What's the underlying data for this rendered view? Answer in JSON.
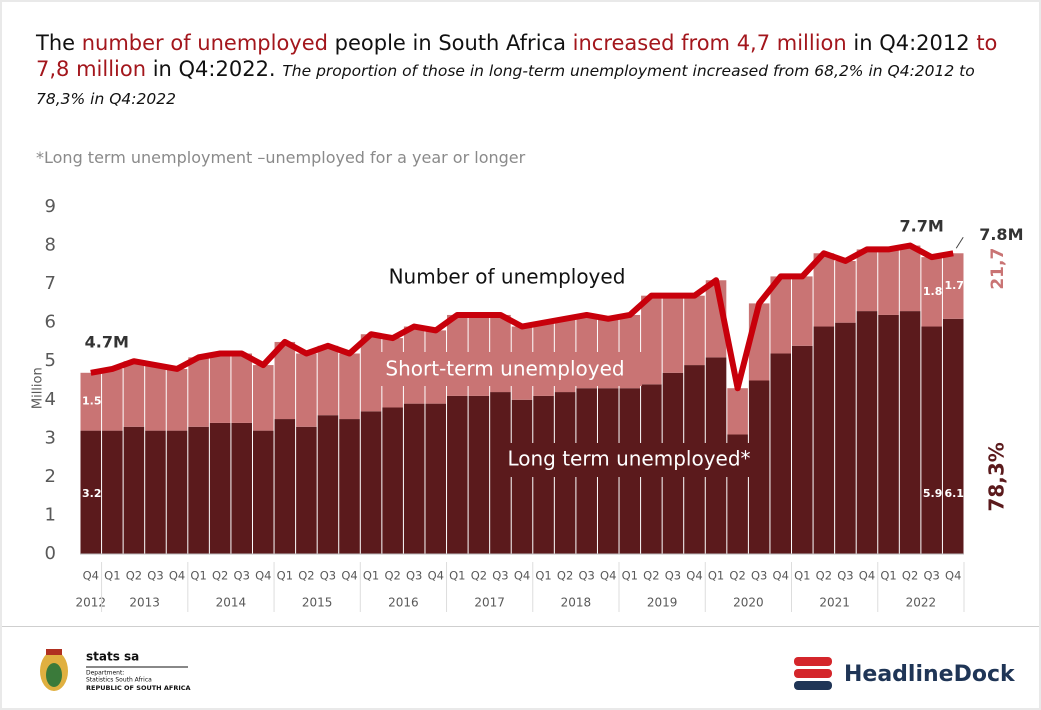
{
  "chart_data": {
    "type": "stacked_bar_line",
    "title": [
      {
        "text": "The ",
        "highlight": false
      },
      {
        "text": "number of unemployed",
        "highlight": true
      },
      {
        "text": " people in South Africa ",
        "highlight": false
      },
      {
        "text": "increased from 4,7 million",
        "highlight": true
      },
      {
        "text": " in Q4:2012 ",
        "highlight": false
      },
      {
        "text": "to 7,8 million",
        "highlight": true
      },
      {
        "text": " in Q4:2022.",
        "highlight": false
      }
    ],
    "subtitle": "The proportion of those in long-term unemployment increased from 68,2% in Q4:2012 to 78,3% in Q4:2022",
    "note": "*Long term unemployment –unemployed for a year or longer",
    "y_label": "Million",
    "categories": [
      "Q4",
      "Q1",
      "Q2",
      "Q3",
      "Q4",
      "Q1",
      "Q2",
      "Q3",
      "Q4",
      "Q1",
      "Q2",
      "Q3",
      "Q4",
      "Q1",
      "Q2",
      "Q3",
      "Q4",
      "Q1",
      "Q2",
      "Q3",
      "Q4",
      "Q1",
      "Q2",
      "Q3",
      "Q4",
      "Q1",
      "Q2",
      "Q3",
      "Q4",
      "Q1",
      "Q2",
      "Q3",
      "Q4",
      "Q1",
      "Q2",
      "Q3",
      "Q4",
      "Q1",
      "Q2",
      "Q3",
      "Q4"
    ],
    "year_groups": [
      {
        "label": "2012",
        "count": 1
      },
      {
        "label": "2013",
        "count": 4
      },
      {
        "label": "2014",
        "count": 4
      },
      {
        "label": "2015",
        "count": 4
      },
      {
        "label": "2016",
        "count": 4
      },
      {
        "label": "2017",
        "count": 4
      },
      {
        "label": "2018",
        "count": 4
      },
      {
        "label": "2019",
        "count": 4
      },
      {
        "label": "2020",
        "count": 4
      },
      {
        "label": "2021",
        "count": 4
      },
      {
        "label": "2022",
        "count": 4
      }
    ],
    "series": [
      {
        "name": "Long term unemployed*",
        "kind": "bar",
        "color": "#5b1a1c",
        "values": [
          3.2,
          3.2,
          3.3,
          3.2,
          3.2,
          3.3,
          3.4,
          3.4,
          3.2,
          3.5,
          3.3,
          3.6,
          3.5,
          3.7,
          3.8,
          3.9,
          3.9,
          4.1,
          4.1,
          4.2,
          4.0,
          4.1,
          4.2,
          4.3,
          4.3,
          4.3,
          4.4,
          4.7,
          4.9,
          5.1,
          3.1,
          4.5,
          5.2,
          5.4,
          5.9,
          6.0,
          6.3,
          6.2,
          6.3,
          5.9,
          6.1
        ],
        "value_labels": [
          "3.2",
          null,
          null,
          null,
          null,
          null,
          null,
          null,
          null,
          null,
          null,
          null,
          null,
          null,
          null,
          null,
          null,
          null,
          null,
          null,
          null,
          null,
          null,
          null,
          null,
          null,
          null,
          null,
          null,
          null,
          null,
          null,
          null,
          null,
          null,
          null,
          null,
          null,
          null,
          "5.9",
          "6.1"
        ]
      },
      {
        "name": "Short-term unemployed",
        "kind": "bar",
        "color": "#c97474",
        "values": [
          1.5,
          1.6,
          1.7,
          1.7,
          1.6,
          1.8,
          1.8,
          1.8,
          1.7,
          2.0,
          1.9,
          1.8,
          1.7,
          2.0,
          1.8,
          2.0,
          1.9,
          2.1,
          2.1,
          2.0,
          1.9,
          1.9,
          1.9,
          1.9,
          1.8,
          1.9,
          2.3,
          2.0,
          1.8,
          2.0,
          1.2,
          2.0,
          2.0,
          1.8,
          1.9,
          1.6,
          1.6,
          1.7,
          1.7,
          1.8,
          1.7
        ],
        "value_labels": [
          "1.5",
          null,
          null,
          null,
          null,
          null,
          null,
          null,
          null,
          null,
          null,
          null,
          null,
          null,
          null,
          null,
          null,
          null,
          null,
          null,
          null,
          null,
          null,
          null,
          null,
          null,
          null,
          null,
          null,
          null,
          null,
          null,
          null,
          null,
          null,
          null,
          null,
          null,
          null,
          "1.8",
          "1.7"
        ]
      },
      {
        "name": "Number of unemployed",
        "kind": "line",
        "color": "#c8000b",
        "values": [
          4.7,
          4.8,
          5.0,
          4.9,
          4.8,
          5.1,
          5.2,
          5.2,
          4.9,
          5.5,
          5.2,
          5.4,
          5.2,
          5.7,
          5.6,
          5.9,
          5.8,
          6.2,
          6.2,
          6.2,
          5.9,
          6.0,
          6.1,
          6.2,
          6.1,
          6.2,
          6.7,
          6.7,
          6.7,
          7.1,
          4.3,
          6.5,
          7.2,
          7.2,
          7.8,
          7.6,
          7.9,
          7.9,
          8.0,
          7.7,
          7.8
        ],
        "value_labels": [
          "4.7M",
          null,
          null,
          null,
          null,
          null,
          null,
          null,
          null,
          null,
          null,
          null,
          null,
          null,
          null,
          null,
          null,
          null,
          null,
          null,
          null,
          null,
          null,
          null,
          null,
          null,
          null,
          null,
          null,
          null,
          null,
          null,
          null,
          null,
          null,
          null,
          null,
          null,
          null,
          "7.7M",
          "7.8M"
        ]
      }
    ],
    "annotations": [
      {
        "text": "21,7",
        "color": "#c97474"
      },
      {
        "text": "78,3%",
        "color": "#5b1a1c"
      }
    ],
    "ylim": [
      0,
      9
    ],
    "yticks": [
      0,
      1,
      2,
      3,
      4,
      5,
      6,
      7,
      8,
      9
    ],
    "grid": false
  },
  "footer": {
    "left_logo": [
      "stats sa",
      "Department:",
      "Statistics South Africa",
      "REPUBLIC OF SOUTH AFRICA"
    ],
    "right_logo": "HeadlineDock"
  }
}
